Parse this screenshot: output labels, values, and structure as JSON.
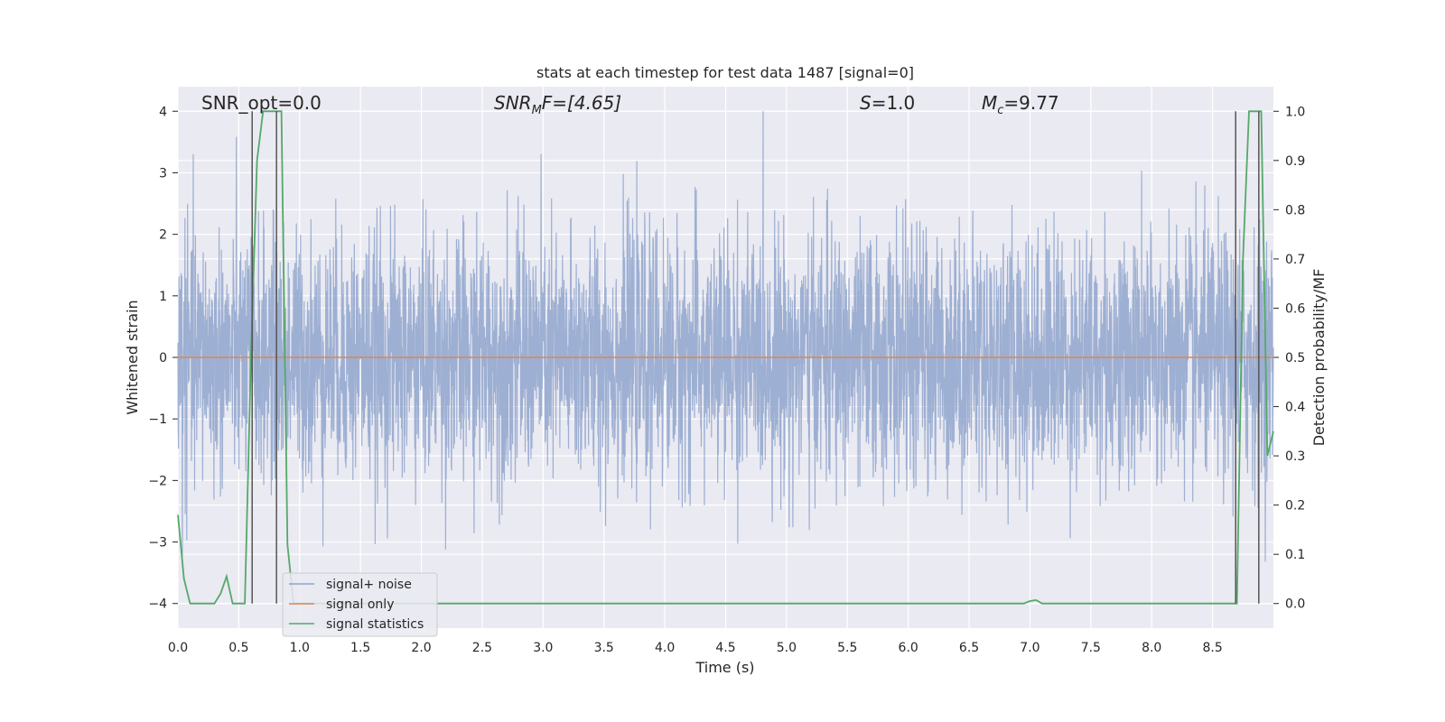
{
  "chart_data": {
    "type": "line",
    "title": "stats at each timestep for test data 1487 [signal=0]",
    "xlabel": "Time (s)",
    "ylabel_left": "Whitened strain",
    "ylabel_right": "Detection probability/MF",
    "xlim": [
      0.0,
      9.0
    ],
    "ylim_left": [
      -4.4,
      4.4
    ],
    "ylim_right": [
      -0.05,
      1.05
    ],
    "x_ticks": [
      "0.0",
      "0.5",
      "1.0",
      "1.5",
      "2.0",
      "2.5",
      "3.0",
      "3.5",
      "4.0",
      "4.5",
      "5.0",
      "5.5",
      "6.0",
      "6.5",
      "7.0",
      "7.5",
      "8.0",
      "8.5"
    ],
    "y_ticks_left": [
      "4",
      "3",
      "2",
      "1",
      "0",
      "−1",
      "−2",
      "−3",
      "−4"
    ],
    "y_ticks_right": [
      "1.0",
      "0.9",
      "0.8",
      "0.7",
      "0.6",
      "0.5",
      "0.4",
      "0.3",
      "0.2",
      "0.1",
      "0.0"
    ],
    "grid": true,
    "legend_position": "lower-left",
    "annotations": {
      "snr_opt": "SNR_opt=0.0",
      "snr_mf_main": "SNR",
      "snr_mf_sub": "M",
      "snr_mf_tail": "F=[4.65]",
      "s_main": "S",
      "s_val": "=1.0",
      "mc_main": "M",
      "mc_sub": "c",
      "mc_val": "=9.77"
    },
    "series": [
      {
        "name": "signal+ noise",
        "color": "#8fa4cc",
        "description_values": "whitened noise, roughly within [-3.9, 4.0]"
      },
      {
        "name": "signal only",
        "color": "#dd8452",
        "x": [
          0.0,
          9.0
        ],
        "y": [
          0.0,
          0.0
        ]
      },
      {
        "name": "signal statistics",
        "color": "#55a868",
        "x": [
          0.0,
          0.05,
          0.1,
          0.2,
          0.3,
          0.35,
          0.4,
          0.45,
          0.55,
          0.6,
          0.65,
          0.7,
          0.75,
          0.8,
          0.85,
          0.9,
          0.95,
          1.0,
          1.5,
          2.0,
          3.0,
          4.0,
          5.0,
          6.0,
          6.5,
          6.95,
          7.0,
          7.05,
          7.1,
          7.5,
          8.0,
          8.5,
          8.7,
          8.75,
          8.8,
          8.85,
          8.9,
          8.95,
          9.0
        ],
        "y": [
          0.18,
          0.05,
          0.0,
          0.0,
          0.0,
          0.02,
          0.055,
          0.0,
          0.0,
          0.5,
          0.9,
          1.0,
          1.0,
          1.0,
          1.0,
          0.12,
          0.0,
          0.0,
          0.0,
          0.0,
          0.0,
          0.0,
          0.0,
          0.0,
          0.0,
          0.0,
          0.005,
          0.007,
          0.0,
          0.0,
          0.0,
          0.0,
          0.0,
          0.7,
          1.0,
          1.0,
          1.0,
          0.3,
          0.35
        ]
      }
    ],
    "vertical_markers_s": [
      0.61,
      0.81,
      8.69,
      8.88
    ]
  }
}
